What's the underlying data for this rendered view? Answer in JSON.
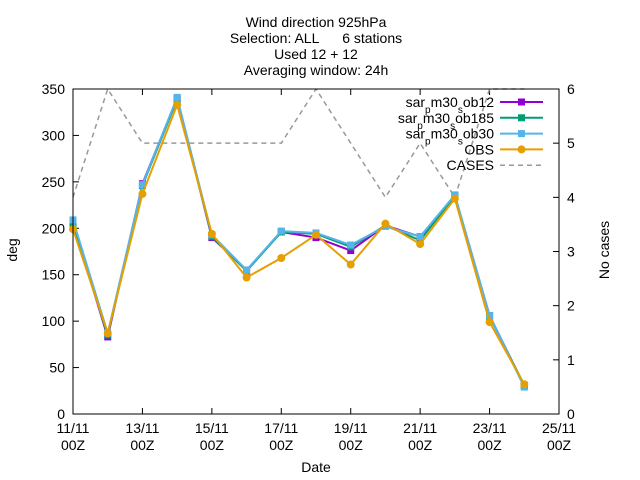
{
  "chart_data": {
    "type": "line",
    "title_lines": [
      "Wind direction 925hPa",
      "Selection: ALL      6 stations",
      "Used 12 + 12",
      "Averaging window: 24h"
    ],
    "xlabel": "Date",
    "ylabel": "deg",
    "y2label": "No cases",
    "x_ticks": [
      {
        "pos": 0,
        "line1": "11/11",
        "line2": "00Z"
      },
      {
        "pos": 2,
        "line1": "13/11",
        "line2": "00Z"
      },
      {
        "pos": 4,
        "line1": "15/11",
        "line2": "00Z"
      },
      {
        "pos": 6,
        "line1": "17/11",
        "line2": "00Z"
      },
      {
        "pos": 8,
        "line1": "19/11",
        "line2": "00Z"
      },
      {
        "pos": 10,
        "line1": "21/11",
        "line2": "00Z"
      },
      {
        "pos": 12,
        "line1": "23/11",
        "line2": "00Z"
      },
      {
        "pos": 14,
        "line1": "25/11",
        "line2": "00Z"
      }
    ],
    "xlim": [
      0,
      14
    ],
    "ylim": [
      0,
      350
    ],
    "y_ticks": [
      0,
      50,
      100,
      150,
      200,
      250,
      300,
      350
    ],
    "y2lim": [
      0,
      6
    ],
    "y2_ticks": [
      0,
      1,
      2,
      3,
      4,
      5,
      6
    ],
    "legend_position": "top-right",
    "series": [
      {
        "name": "sar_pm30_sob12",
        "label_parts": [
          [
            "sar",
            ""
          ],
          [
            "p",
            "sub"
          ],
          [
            "m30",
            ""
          ],
          [
            "s",
            "sub"
          ],
          [
            "ob12",
            ""
          ]
        ],
        "color": "#9400d3",
        "marker": "square",
        "axis": "y1",
        "x": [
          0,
          1,
          2,
          3,
          4,
          5,
          6,
          7,
          8,
          9,
          10,
          11,
          12,
          13
        ],
        "values": [
          205,
          83,
          248,
          340,
          190,
          155,
          196,
          190,
          176,
          203,
          191,
          235,
          106,
          30
        ]
      },
      {
        "name": "sar_pm30_sob185",
        "label_parts": [
          [
            "sar",
            ""
          ],
          [
            "p",
            "sub"
          ],
          [
            "m30",
            ""
          ],
          [
            "s",
            "sub"
          ],
          [
            "ob185",
            ""
          ]
        ],
        "color": "#009e73",
        "marker": "square",
        "axis": "y1",
        "x": [
          0,
          1,
          2,
          3,
          4,
          5,
          6,
          7,
          8,
          9,
          10,
          11,
          12,
          13
        ],
        "values": [
          204,
          85,
          246,
          339,
          191,
          154,
          196,
          194,
          180,
          203,
          187,
          235,
          105,
          31
        ]
      },
      {
        "name": "sar_pm30_sob30",
        "label_parts": [
          [
            "sar",
            ""
          ],
          [
            "p",
            "sub"
          ],
          [
            "m30",
            ""
          ],
          [
            "s",
            "sub"
          ],
          [
            "ob30",
            ""
          ]
        ],
        "color": "#56b4e9",
        "marker": "square",
        "axis": "y1",
        "x": [
          0,
          1,
          2,
          3,
          4,
          5,
          6,
          7,
          8,
          9,
          10,
          11,
          12,
          13
        ],
        "values": [
          209,
          87,
          247,
          341,
          193,
          155,
          197,
          195,
          182,
          202,
          191,
          236,
          106,
          29
        ]
      },
      {
        "name": "OBS",
        "label_parts": [
          [
            "OBS",
            ""
          ]
        ],
        "color": "#e69f00",
        "marker": "circle",
        "axis": "y1",
        "x": [
          0,
          1,
          2,
          3,
          4,
          5,
          6,
          7,
          8,
          9,
          10,
          11,
          12,
          13
        ],
        "values": [
          199,
          87,
          237,
          333,
          194,
          147,
          168,
          193,
          161,
          205,
          183,
          232,
          99,
          32
        ]
      },
      {
        "name": "CASES",
        "label_parts": [
          [
            "CASES",
            ""
          ]
        ],
        "color": "#999999",
        "marker": "none",
        "dashed": true,
        "axis": "y2",
        "x": [
          0,
          1,
          2,
          3,
          4,
          5,
          6,
          7,
          8,
          9,
          10,
          11,
          12,
          13
        ],
        "values": [
          4,
          6,
          5,
          5,
          5,
          5,
          5,
          6,
          5,
          4,
          5,
          4,
          6,
          6
        ]
      }
    ]
  }
}
